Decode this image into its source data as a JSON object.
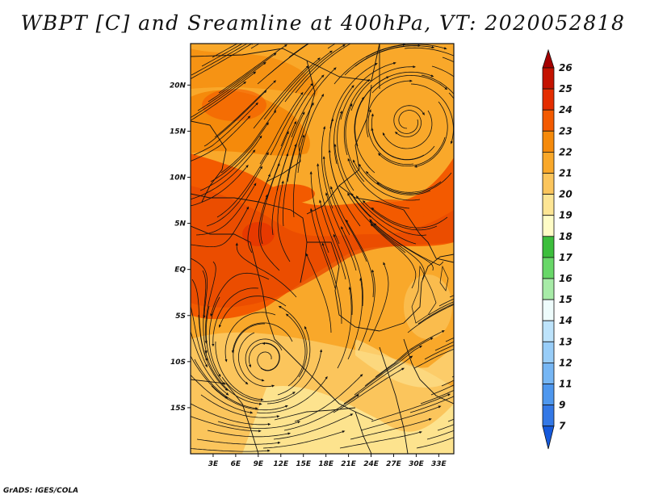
{
  "title": "WBPT [C] and Sreamline at 400hPa, VT: 2020052818",
  "footer": "GrADS: IGES/COLA",
  "map": {
    "lon_range": [
      0,
      35
    ],
    "lat_range": [
      -20,
      24.5
    ],
    "lon_ticks": [
      "3E",
      "6E",
      "9E",
      "12E",
      "15E",
      "18E",
      "21E",
      "24E",
      "27E",
      "30E",
      "33E"
    ],
    "lon_tick_values": [
      3,
      6,
      9,
      12,
      15,
      18,
      21,
      24,
      27,
      30,
      33
    ],
    "lat_ticks": [
      "20N",
      "15N",
      "10N",
      "5N",
      "EQ",
      "5S",
      "10S",
      "15S"
    ],
    "lat_tick_values": [
      20,
      15,
      10,
      5,
      0,
      -5,
      -10,
      -15
    ]
  },
  "colorbar": {
    "labels": [
      "26",
      "25",
      "24",
      "23",
      "22",
      "21",
      "20",
      "19",
      "18",
      "17",
      "16",
      "15",
      "14",
      "13",
      "12",
      "11",
      "9",
      "7"
    ],
    "colors": [
      "#a50000",
      "#c41200",
      "#e42d00",
      "#f35a00",
      "#f58a0b",
      "#f9a82a",
      "#fbc55c",
      "#fde594",
      "#fffcc6",
      "#3cbe3c",
      "#68d768",
      "#a7eba7",
      "#eefcfc",
      "#bde3fb",
      "#98cdf8",
      "#76b6f4",
      "#4e97ee",
      "#3378e6",
      "#1559dc"
    ]
  }
}
